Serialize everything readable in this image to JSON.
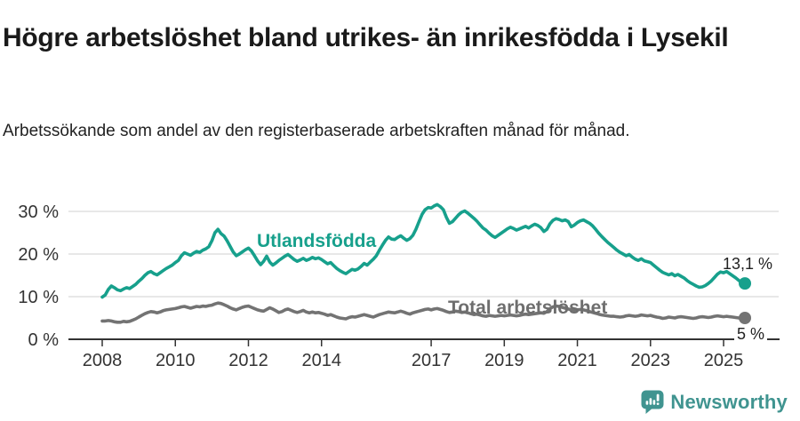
{
  "header": {
    "title": "Högre arbetslöshet bland utrikes- än inrikesfödda i Lysekil",
    "subtitle": "Arbetssökande som andel av den registerbaserade arbetskraften månad för månad."
  },
  "footer": {
    "brand": "Newsworthy",
    "logo_icon": "bar-chart-speech-bubble-icon"
  },
  "colors": {
    "foreign_born_line": "#17a08c",
    "total_line": "#737373",
    "grid": "#d9d9d9",
    "axis": "#333333",
    "tick_text": "#333333",
    "brand_teal": "#409490"
  },
  "chart_data": {
    "type": "line",
    "frequency": "monthly",
    "start_year": 2008,
    "end_point_note": "last point approx Aug 2025",
    "grid": "horizontal",
    "legend_position": "inline-labels",
    "ylim": [
      0,
      33
    ],
    "xlabel": "",
    "ylabel": "",
    "y_tick_labels": [
      "0 %",
      "10 %",
      "20 %",
      "30 %"
    ],
    "y_tick_values": [
      0,
      10,
      20,
      30
    ],
    "x_tick_labels": [
      "2008",
      "2010",
      "2012",
      "2014",
      "2017",
      "2019",
      "2021",
      "2023",
      "2025"
    ],
    "x_tick_years": [
      2008,
      2010,
      2012,
      2014,
      2017,
      2019,
      2021,
      2023,
      2025
    ],
    "series": [
      {
        "name": "Utlandsfödda",
        "color": "#17a08c",
        "end_label": "13,1 %",
        "end_value": 13.1,
        "values": [
          9.9,
          10.4,
          11.7,
          12.5,
          12.1,
          11.6,
          11.4,
          11.8,
          12.1,
          11.9,
          12.4,
          12.9,
          13.6,
          14.2,
          15.0,
          15.6,
          15.9,
          15.4,
          15.1,
          15.6,
          16.1,
          16.6,
          17.0,
          17.4,
          18.0,
          18.5,
          19.6,
          20.3,
          20.0,
          19.7,
          20.2,
          20.6,
          20.4,
          20.9,
          21.2,
          21.7,
          23.1,
          25.0,
          25.8,
          24.8,
          24.2,
          23.1,
          21.8,
          20.5,
          19.6,
          20.0,
          20.5,
          21.0,
          21.4,
          20.7,
          19.6,
          18.4,
          17.5,
          18.3,
          19.5,
          18.1,
          17.4,
          17.9,
          18.5,
          19.0,
          19.5,
          19.9,
          19.3,
          18.7,
          18.3,
          18.6,
          19.0,
          18.5,
          18.8,
          19.2,
          18.9,
          19.1,
          18.7,
          18.2,
          17.7,
          18.0,
          17.3,
          16.6,
          16.1,
          15.7,
          15.4,
          15.9,
          16.4,
          16.2,
          16.5,
          17.1,
          17.8,
          17.4,
          18.1,
          18.8,
          19.6,
          20.9,
          22.1,
          23.2,
          24.0,
          23.5,
          23.4,
          23.9,
          24.3,
          23.7,
          23.2,
          23.6,
          24.4,
          25.8,
          27.6,
          29.3,
          30.4,
          30.9,
          30.8,
          31.3,
          31.6,
          31.1,
          30.4,
          28.6,
          27.2,
          27.6,
          28.4,
          29.2,
          29.8,
          30.1,
          29.6,
          29.0,
          28.4,
          27.7,
          26.9,
          26.1,
          25.6,
          24.9,
          24.3,
          23.9,
          24.4,
          24.9,
          25.4,
          25.9,
          26.3,
          26.0,
          25.6,
          25.9,
          26.2,
          26.5,
          26.1,
          26.6,
          27.0,
          26.7,
          26.2,
          25.3,
          25.8,
          27.1,
          27.9,
          28.3,
          28.1,
          27.8,
          28.0,
          27.6,
          26.4,
          26.8,
          27.4,
          27.8,
          28.0,
          27.6,
          27.2,
          26.6,
          25.8,
          24.9,
          24.1,
          23.4,
          22.7,
          22.1,
          21.5,
          20.9,
          20.4,
          20.0,
          19.6,
          19.9,
          19.3,
          18.8,
          18.5,
          18.9,
          18.4,
          18.2,
          18.0,
          17.4,
          16.8,
          16.2,
          15.7,
          15.4,
          15.1,
          15.4,
          14.9,
          15.2,
          14.8,
          14.4,
          13.8,
          13.3,
          12.9,
          12.5,
          12.2,
          12.3,
          12.6,
          13.1,
          13.7,
          14.5,
          15.3,
          15.8,
          15.6,
          15.9,
          15.4,
          14.9,
          14.4,
          13.8,
          13.3,
          13.1
        ]
      },
      {
        "name": "Total arbetslöshet",
        "color": "#737373",
        "end_label": "5 %",
        "end_value": 5.0,
        "values": [
          4.3,
          4.3,
          4.4,
          4.3,
          4.1,
          4.0,
          4.0,
          4.2,
          4.1,
          4.2,
          4.5,
          4.8,
          5.2,
          5.6,
          6.0,
          6.3,
          6.5,
          6.4,
          6.2,
          6.4,
          6.7,
          6.9,
          7.0,
          7.1,
          7.2,
          7.4,
          7.6,
          7.7,
          7.5,
          7.3,
          7.5,
          7.7,
          7.6,
          7.8,
          7.7,
          7.9,
          8.0,
          8.3,
          8.5,
          8.4,
          8.1,
          7.8,
          7.4,
          7.1,
          6.9,
          7.2,
          7.5,
          7.7,
          7.8,
          7.5,
          7.2,
          6.9,
          6.7,
          6.6,
          7.0,
          7.4,
          7.1,
          6.7,
          6.3,
          6.5,
          6.9,
          7.1,
          6.8,
          6.5,
          6.3,
          6.5,
          6.8,
          6.4,
          6.2,
          6.4,
          6.2,
          6.3,
          6.1,
          5.9,
          5.6,
          5.8,
          5.5,
          5.2,
          5.0,
          4.9,
          4.8,
          5.1,
          5.3,
          5.2,
          5.4,
          5.6,
          5.8,
          5.6,
          5.4,
          5.2,
          5.5,
          5.8,
          6.0,
          6.2,
          6.4,
          6.3,
          6.2,
          6.4,
          6.6,
          6.4,
          6.1,
          5.9,
          6.2,
          6.4,
          6.6,
          6.8,
          7.0,
          7.1,
          6.9,
          7.1,
          7.2,
          7.0,
          6.8,
          6.5,
          6.3,
          6.4,
          6.6,
          6.5,
          6.3,
          6.4,
          6.2,
          6.0,
          5.8,
          5.9,
          5.7,
          5.5,
          5.4,
          5.6,
          5.5,
          5.4,
          5.5,
          5.6,
          5.5,
          5.6,
          5.7,
          5.6,
          5.5,
          5.6,
          5.8,
          5.9,
          5.8,
          5.9,
          6.0,
          6.1,
          6.2,
          6.1,
          6.5,
          7.2,
          7.6,
          7.8,
          7.7,
          7.5,
          7.3,
          7.1,
          6.9,
          6.8,
          6.9,
          7.0,
          6.9,
          6.7,
          6.5,
          6.3,
          6.1,
          5.9,
          5.7,
          5.6,
          5.5,
          5.4,
          5.4,
          5.3,
          5.2,
          5.3,
          5.5,
          5.6,
          5.5,
          5.4,
          5.5,
          5.7,
          5.6,
          5.5,
          5.6,
          5.4,
          5.2,
          5.1,
          4.9,
          5.0,
          5.2,
          5.1,
          5.0,
          5.2,
          5.3,
          5.2,
          5.1,
          5.0,
          4.9,
          5.0,
          5.2,
          5.3,
          5.2,
          5.1,
          5.2,
          5.4,
          5.5,
          5.4,
          5.3,
          5.4,
          5.3,
          5.2,
          5.1,
          5.0,
          5.0,
          5.0
        ]
      }
    ]
  }
}
